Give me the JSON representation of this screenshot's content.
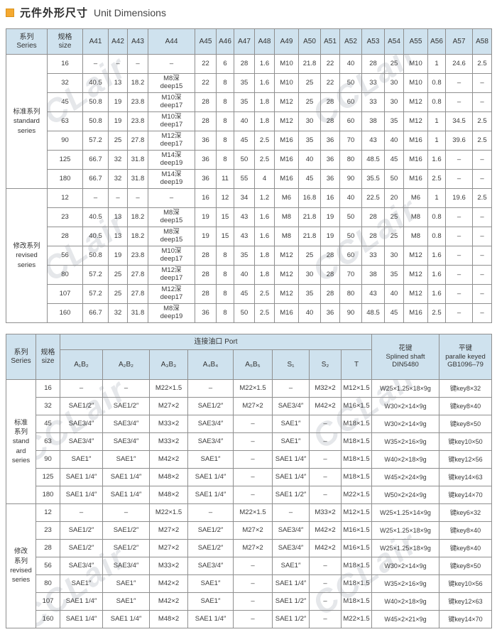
{
  "page": {
    "title_zh": "元件外形尺寸",
    "title_en": "Unit Dimensions",
    "accent_color": "#F5A930",
    "header_bg": "#CFE2EE",
    "watermark": "CCLair"
  },
  "table1": {
    "series_header": "系列\nSeries",
    "size_header": "规格\nsize",
    "columns": [
      "A41",
      "A42",
      "A43",
      "A44",
      "A45",
      "A46",
      "A47",
      "A48",
      "A49",
      "A50",
      "A51",
      "A52",
      "A53",
      "A54",
      "A55",
      "A56",
      "A57",
      "A58"
    ],
    "groups": [
      {
        "label": "标准系列\nstandard\nseries",
        "rows": [
          {
            "size": "16",
            "cells": [
              "–",
              "–",
              "–",
              "–",
              "22",
              "6",
              "28",
              "1.6",
              "M10",
              "21.8",
              "22",
              "40",
              "28",
              "25",
              "M10",
              "1",
              "24.6",
              "2.5"
            ]
          },
          {
            "size": "32",
            "cells": [
              "40.5",
              "13",
              "18.2",
              "M8深\ndeep15",
              "22",
              "8",
              "35",
              "1.6",
              "M10",
              "25",
              "22",
              "50",
              "33",
              "30",
              "M10",
              "0.8",
              "–",
              "–"
            ]
          },
          {
            "size": "45",
            "cells": [
              "50.8",
              "19",
              "23.8",
              "M10深\ndeep17",
              "28",
              "8",
              "35",
              "1.8",
              "M12",
              "25",
              "28",
              "60",
              "33",
              "30",
              "M12",
              "0.8",
              "–",
              "–"
            ]
          },
          {
            "size": "63",
            "cells": [
              "50.8",
              "19",
              "23.8",
              "M10深\ndeep17",
              "28",
              "8",
              "40",
              "1.8",
              "M12",
              "30",
              "28",
              "60",
              "38",
              "35",
              "M12",
              "1",
              "34.5",
              "2.5"
            ]
          },
          {
            "size": "90",
            "cells": [
              "57.2",
              "25",
              "27.8",
              "M12深\ndeep17",
              "36",
              "8",
              "45",
              "2.5",
              "M16",
              "35",
              "36",
              "70",
              "43",
              "40",
              "M16",
              "1",
              "39.6",
              "2.5"
            ]
          },
          {
            "size": "125",
            "cells": [
              "66.7",
              "32",
              "31.8",
              "M14深\ndeep19",
              "36",
              "8",
              "50",
              "2.5",
              "M16",
              "40",
              "36",
              "80",
              "48.5",
              "45",
              "M16",
              "1.6",
              "–",
              "–"
            ]
          },
          {
            "size": "180",
            "cells": [
              "66.7",
              "32",
              "31.8",
              "M14深\ndeep19",
              "36",
              "11",
              "55",
              "4",
              "M16",
              "45",
              "36",
              "90",
              "35.5",
              "50",
              "M16",
              "2.5",
              "–",
              "–"
            ]
          }
        ]
      },
      {
        "label": "修改系列\nrevised\nseries",
        "rows": [
          {
            "size": "12",
            "cells": [
              "–",
              "–",
              "–",
              "–",
              "16",
              "12",
              "34",
              "1.2",
              "M6",
              "16.8",
              "16",
              "40",
              "22.5",
              "20",
              "M6",
              "1",
              "19.6",
              "2.5"
            ]
          },
          {
            "size": "23",
            "cells": [
              "40.5",
              "13",
              "18.2",
              "M8深\ndeep15",
              "19",
              "15",
              "43",
              "1.6",
              "M8",
              "21.8",
              "19",
              "50",
              "28",
              "25",
              "M8",
              "0.8",
              "–",
              "–"
            ]
          },
          {
            "size": "28",
            "cells": [
              "40.5",
              "13",
              "18.2",
              "M8深\ndeep15",
              "19",
              "15",
              "43",
              "1.6",
              "M8",
              "21.8",
              "19",
              "50",
              "28",
              "25",
              "M8",
              "0.8",
              "–",
              "–"
            ]
          },
          {
            "size": "56",
            "cells": [
              "50.8",
              "19",
              "23.8",
              "M10深\ndeep17",
              "28",
              "8",
              "35",
              "1.8",
              "M12",
              "25",
              "28",
              "60",
              "33",
              "30",
              "M12",
              "1.6",
              "–",
              "–"
            ]
          },
          {
            "size": "80",
            "cells": [
              "57.2",
              "25",
              "27.8",
              "M12深\ndeep17",
              "28",
              "8",
              "40",
              "1.8",
              "M12",
              "30",
              "28",
              "70",
              "38",
              "35",
              "M12",
              "1.6",
              "–",
              "–"
            ]
          },
          {
            "size": "107",
            "cells": [
              "57.2",
              "25",
              "27.8",
              "M12深\ndeep17",
              "28",
              "8",
              "45",
              "2.5",
              "M12",
              "35",
              "28",
              "80",
              "43",
              "40",
              "M12",
              "1.6",
              "–",
              "–"
            ]
          },
          {
            "size": "160",
            "cells": [
              "66.7",
              "32",
              "31.8",
              "M8深\ndeep19",
              "36",
              "8",
              "50",
              "2.5",
              "M16",
              "40",
              "36",
              "90",
              "48.5",
              "45",
              "M16",
              "2.5",
              "–",
              "–"
            ]
          }
        ]
      }
    ]
  },
  "table2": {
    "series_header": "系列\nSeries",
    "size_header": "规格\nsize",
    "port_header": "连接油口 Port",
    "spline_header": "花键\nSplined shaft\nDIN5480",
    "key_header": "平键\nparalle keyed\nGB1096–79",
    "port_columns": [
      "A₁B₂",
      "A₂B₂",
      "A₃B₃",
      "A₄B₄",
      "A₅B₅",
      "S₁",
      "S₂",
      "T"
    ],
    "groups": [
      {
        "label": "标准\n系列\nstand\nard\nseries",
        "rows": [
          {
            "size": "16",
            "cells": [
              "–",
              "–",
              "M22×1.5",
              "–",
              "M22×1.5",
              "–",
              "M32×2",
              "M12×1.5",
              "W25×1.25×18×9g",
              "键key8×32"
            ]
          },
          {
            "size": "32",
            "cells": [
              "SAE1/2″",
              "SAE1/2″",
              "M27×2",
              "SAE1/2″",
              "M27×2",
              "SAE3/4″",
              "M42×2",
              "M16×1.5",
              "W30×2×14×9g",
              "键key8×40"
            ]
          },
          {
            "size": "45",
            "cells": [
              "SAE3/4″",
              "SAE3/4″",
              "M33×2",
              "SAE3/4″",
              "–",
              "SAE1″",
              "–",
              "M18×1.5",
              "W30×2×14×9g",
              "键key8×50"
            ]
          },
          {
            "size": "63",
            "cells": [
              "SAE3/4″",
              "SAE3/4″",
              "M33×2",
              "SAE3/4″",
              "–",
              "SAE1″",
              "–",
              "M18×1.5",
              "W35×2×16×9g",
              "键key10×50"
            ]
          },
          {
            "size": "90",
            "cells": [
              "SAE1″",
              "SAE1″",
              "M42×2",
              "SAE1″",
              "–",
              "SAE1 1/4″",
              "–",
              "M18×1.5",
              "W40×2×18×9g",
              "键key12×56"
            ]
          },
          {
            "size": "125",
            "cells": [
              "SAE1 1/4″",
              "SAE1 1/4″",
              "M48×2",
              "SAE1 1/4″",
              "–",
              "SAE1 1/4″",
              "–",
              "M18×1.5",
              "W45×2×24×9g",
              "键key14×63"
            ]
          },
          {
            "size": "180",
            "cells": [
              "SAE1 1/4″",
              "SAE1 1/4″",
              "M48×2",
              "SAE1 1/4″",
              "–",
              "SAE1 1/2″",
              "–",
              "M22×1.5",
              "W50×2×24×9g",
              "键key14×70"
            ]
          }
        ]
      },
      {
        "label": "修改\n系列\nrevised\nseries",
        "rows": [
          {
            "size": "12",
            "cells": [
              "–",
              "–",
              "M22×1.5",
              "–",
              "M22×1.5",
              "–",
              "M33×2",
              "M12×1.5",
              "W25×1.25×14×9g",
              "键key6×32"
            ]
          },
          {
            "size": "23",
            "cells": [
              "SAE1/2″",
              "SAE1/2″",
              "M27×2",
              "SAE1/2″",
              "M27×2",
              "SAE3/4″",
              "M42×2",
              "M16×1.5",
              "W25×1.25×18×9g",
              "键key8×40"
            ]
          },
          {
            "size": "28",
            "cells": [
              "SAE1/2″",
              "SAE1/2″",
              "M27×2",
              "SAE1/2″",
              "M27×2",
              "SAE3/4″",
              "M42×2",
              "M16×1.5",
              "W25×1.25×18×9g",
              "键key8×40"
            ]
          },
          {
            "size": "56",
            "cells": [
              "SAE3/4″",
              "SAE3/4″",
              "M33×2",
              "SAE3/4″",
              "–",
              "SAE1″",
              "–",
              "M18×1.5",
              "W30×2×14×9g",
              "键key8×50"
            ]
          },
          {
            "size": "80",
            "cells": [
              "SAE1″",
              "SAE1″",
              "M42×2",
              "SAE1″",
              "–",
              "SAE1 1/4″",
              "–",
              "M18×1.5",
              "W35×2×16×9g",
              "键key10×56"
            ]
          },
          {
            "size": "107",
            "cells": [
              "SAE1 1/4″",
              "SAE1″",
              "M42×2",
              "SAE1″",
              "–",
              "SAE1 1/2″",
              "–",
              "M18×1.5",
              "W40×2×18×9g",
              "键key12×63"
            ]
          },
          {
            "size": "160",
            "cells": [
              "SAE1 1/4″",
              "SAE1 1/4″",
              "M48×2",
              "SAE1 1/4″",
              "–",
              "SAE1 1/2″",
              "–",
              "M22×1.5",
              "W45×2×21×9g",
              "键key14×70"
            ]
          }
        ]
      }
    ]
  }
}
